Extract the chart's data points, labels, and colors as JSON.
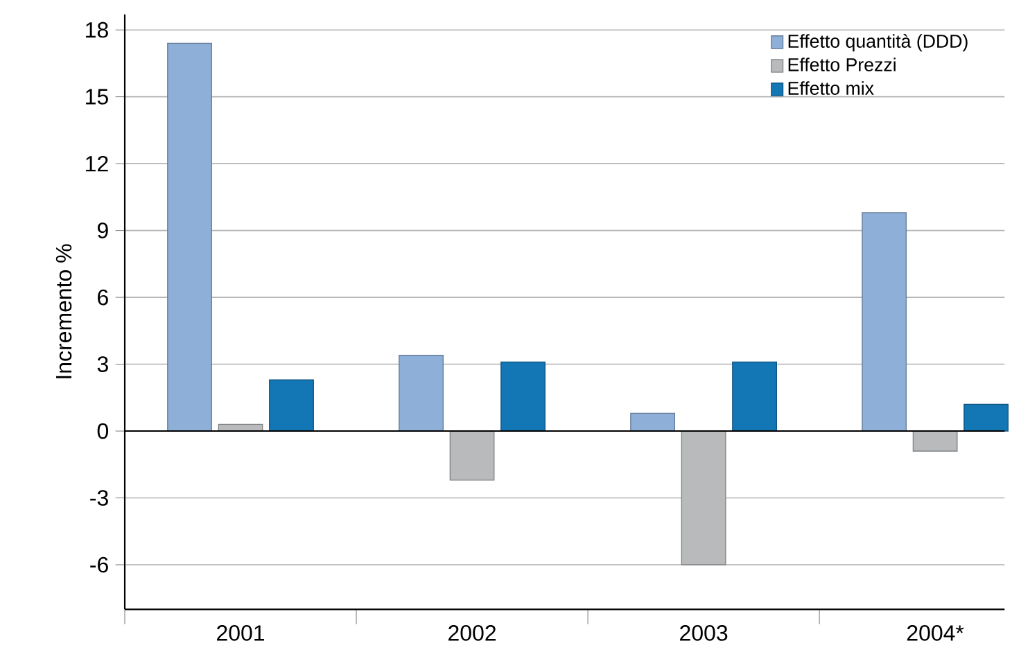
{
  "chart_data": {
    "type": "bar",
    "ylabel": "Incremento %",
    "categories": [
      "2001",
      "2002",
      "2003",
      "2004*"
    ],
    "series": [
      {
        "name": "Effetto quantità (DDD)",
        "color": "#8eb0d8",
        "values": [
          17.4,
          3.4,
          0.8,
          9.8
        ]
      },
      {
        "name": "Effetto Prezzi",
        "color": "#b9babc",
        "values": [
          0.3,
          -2.2,
          -6.0,
          -0.9
        ]
      },
      {
        "name": "Effetto mix",
        "color": "#1477b5",
        "values": [
          2.3,
          3.1,
          3.1,
          1.2
        ]
      }
    ],
    "ylim": [
      -8,
      18.7
    ],
    "yticks": [
      -6,
      -3,
      0,
      3,
      6,
      9,
      12,
      15,
      18
    ],
    "grid": "y",
    "legend": "top right"
  }
}
